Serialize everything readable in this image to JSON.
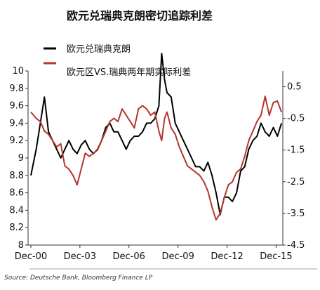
{
  "source_note": "Source: Deutsche Bank, Bloomberg Finance LP",
  "chart_data": {
    "type": "line",
    "title": "欧元兑瑞典克朗密切追踪利差",
    "xlabel": "",
    "ylabel_left": "",
    "ylabel_right": "",
    "x_range": [
      2000.75,
      2016.33
    ],
    "x_ticks": [
      {
        "value": 2000.92,
        "label": "Dec-00"
      },
      {
        "value": 2003.92,
        "label": "Dec-03"
      },
      {
        "value": 2006.92,
        "label": "Dec-06"
      },
      {
        "value": 2009.92,
        "label": "Dec-09"
      },
      {
        "value": 2012.92,
        "label": "Dec-12"
      },
      {
        "value": 2015.92,
        "label": "Dec-15"
      }
    ],
    "ylim_left": [
      8,
      10
    ],
    "ylim_right": [
      -4.5,
      1
    ],
    "y_ticks_left": [
      "8",
      "8.2",
      "8.4",
      "8.6",
      "8.8",
      "9",
      "9.2",
      "9.4",
      "9.6",
      "9.8",
      "10"
    ],
    "y_ticks_right": [
      "-4.5",
      "-3.5",
      "-2.5",
      "-1.5",
      "-0.5",
      "0.5"
    ],
    "grid": false,
    "legend_position": "top-left",
    "series": [
      {
        "name": "欧元兑瑞典克朗",
        "axis": "left",
        "color": "#000000",
        "x": [
          2000.92,
          2001.25,
          2001.5,
          2001.75,
          2002.0,
          2002.25,
          2002.5,
          2002.75,
          2003.0,
          2003.25,
          2003.5,
          2003.75,
          2004.0,
          2004.25,
          2004.5,
          2004.75,
          2005.0,
          2005.25,
          2005.5,
          2005.75,
          2006.0,
          2006.25,
          2006.5,
          2006.75,
          2007.0,
          2007.25,
          2007.5,
          2007.75,
          2008.0,
          2008.25,
          2008.5,
          2008.75,
          2008.92,
          2009.1,
          2009.25,
          2009.5,
          2009.75,
          2010.0,
          2010.25,
          2010.5,
          2010.75,
          2011.0,
          2011.25,
          2011.5,
          2011.75,
          2012.0,
          2012.25,
          2012.5,
          2012.75,
          2013.0,
          2013.25,
          2013.5,
          2013.75,
          2014.0,
          2014.25,
          2014.5,
          2014.75,
          2015.0,
          2015.25,
          2015.5,
          2015.75,
          2016.0,
          2016.25
        ],
        "values": [
          8.8,
          9.1,
          9.4,
          9.7,
          9.3,
          9.2,
          9.1,
          9.0,
          9.1,
          9.2,
          9.1,
          9.05,
          9.15,
          9.2,
          9.1,
          9.05,
          9.1,
          9.2,
          9.35,
          9.4,
          9.3,
          9.3,
          9.2,
          9.1,
          9.2,
          9.25,
          9.25,
          9.3,
          9.4,
          9.4,
          9.45,
          9.6,
          10.2,
          9.9,
          9.75,
          9.7,
          9.4,
          9.3,
          9.2,
          9.1,
          9.0,
          8.9,
          8.9,
          8.85,
          8.95,
          8.8,
          8.6,
          8.35,
          8.55,
          8.55,
          8.5,
          8.6,
          8.85,
          8.9,
          9.1,
          9.2,
          9.25,
          9.4,
          9.3,
          9.25,
          9.35,
          9.25,
          9.4
        ]
      },
      {
        "name": "欧元区VS.瑞典两年期实际利差",
        "axis": "right",
        "color": "#b5352f",
        "x": [
          2000.92,
          2001.25,
          2001.5,
          2001.75,
          2002.0,
          2002.25,
          2002.5,
          2002.75,
          2003.0,
          2003.25,
          2003.5,
          2003.75,
          2004.0,
          2004.25,
          2004.5,
          2004.75,
          2005.0,
          2005.25,
          2005.5,
          2005.75,
          2006.0,
          2006.25,
          2006.5,
          2006.75,
          2007.0,
          2007.25,
          2007.5,
          2007.75,
          2008.0,
          2008.25,
          2008.5,
          2008.75,
          2008.92,
          2009.1,
          2009.25,
          2009.5,
          2009.75,
          2010.0,
          2010.25,
          2010.5,
          2010.75,
          2011.0,
          2011.25,
          2011.5,
          2011.75,
          2012.0,
          2012.25,
          2012.5,
          2012.75,
          2013.0,
          2013.25,
          2013.5,
          2013.75,
          2014.0,
          2014.25,
          2014.5,
          2014.75,
          2015.0,
          2015.25,
          2015.5,
          2015.75,
          2016.0,
          2016.25
        ],
        "values": [
          -0.3,
          -0.5,
          -0.6,
          -0.9,
          -1.0,
          -1.2,
          -1.4,
          -1.3,
          -2.0,
          -2.1,
          -2.3,
          -2.6,
          -2.1,
          -1.6,
          -1.7,
          -1.6,
          -1.5,
          -1.2,
          -0.9,
          -0.6,
          -0.5,
          -0.6,
          -0.2,
          -0.4,
          -0.6,
          -0.8,
          -0.2,
          -0.1,
          -0.2,
          -0.4,
          -0.3,
          -0.9,
          -1.2,
          -0.5,
          -0.3,
          -0.8,
          -1.0,
          -1.4,
          -1.7,
          -2.0,
          -2.1,
          -2.2,
          -2.3,
          -2.5,
          -2.8,
          -3.3,
          -3.7,
          -3.5,
          -3.0,
          -2.6,
          -2.5,
          -2.2,
          -2.1,
          -1.7,
          -1.2,
          -0.9,
          -0.6,
          -0.4,
          0.2,
          -0.4,
          0.0,
          0.05,
          -0.3
        ]
      }
    ]
  }
}
